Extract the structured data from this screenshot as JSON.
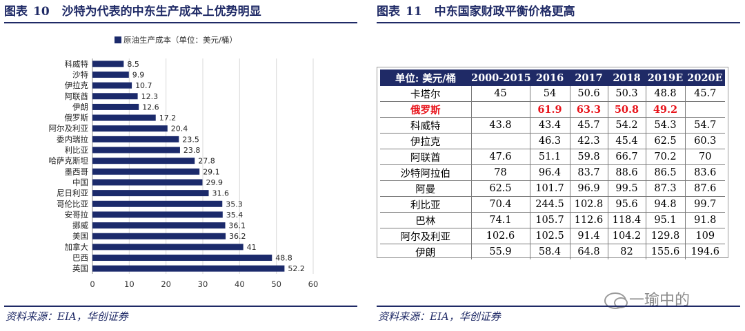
{
  "left": {
    "figure_label": "图表",
    "figure_number": "10",
    "title": "沙特为代表的中东生产成本上优势明显",
    "source": "资料来源：EIA，华创证券"
  },
  "right": {
    "figure_label": "图表",
    "figure_number": "11",
    "title": "中东国家财政平衡价格更高",
    "source": "资料来源：EIA，华创证券",
    "watermark": "一瑜中的",
    "table": {
      "headers": [
        "单位: 美元/桶",
        "2000-2015",
        "2016",
        "2017",
        "2018",
        "2019E",
        "2020E"
      ],
      "rows": [
        {
          "country": "卡塔尔",
          "values": [
            "45",
            "54",
            "50.6",
            "50.3",
            "48.8",
            "45.7"
          ],
          "highlight": false
        },
        {
          "country": "俄罗斯",
          "values": [
            "",
            "61.9",
            "63.3",
            "50.8",
            "49.2",
            ""
          ],
          "highlight": true
        },
        {
          "country": "科威特",
          "values": [
            "43.8",
            "43.4",
            "45.7",
            "54.2",
            "54.3",
            "54.7"
          ],
          "highlight": false
        },
        {
          "country": "伊拉克",
          "values": [
            "",
            "46.3",
            "42.3",
            "45.4",
            "62.5",
            "60.3"
          ],
          "highlight": false
        },
        {
          "country": "阿联酋",
          "values": [
            "47.6",
            "51.1",
            "59.8",
            "66.7",
            "70.2",
            "70"
          ],
          "highlight": false
        },
        {
          "country": "沙特阿拉伯",
          "values": [
            "78",
            "96.4",
            "83.7",
            "88.6",
            "86.5",
            "83.6"
          ],
          "highlight": false
        },
        {
          "country": "阿曼",
          "values": [
            "62.5",
            "101.7",
            "96.9",
            "99.5",
            "87.3",
            "87.6"
          ],
          "highlight": false
        },
        {
          "country": "利比亚",
          "values": [
            "70.4",
            "244.5",
            "102.8",
            "95.6",
            "94.8",
            "99.7"
          ],
          "highlight": false
        },
        {
          "country": "巴林",
          "values": [
            "74.1",
            "105.7",
            "112.6",
            "118.4",
            "95.1",
            "91.8"
          ],
          "highlight": false
        },
        {
          "country": "阿尔及利亚",
          "values": [
            "102.6",
            "102.5",
            "91.4",
            "104.2",
            "129.8",
            "109"
          ],
          "highlight": false
        },
        {
          "country": "伊朗",
          "values": [
            "55.9",
            "58.4",
            "64.8",
            "82",
            "155.6",
            "194.6"
          ],
          "highlight": false
        }
      ]
    }
  },
  "colors": {
    "brand_navy": "#1f2a66",
    "highlight_red": "#e8141b",
    "bar": "#1b2a6b"
  },
  "chart_data": {
    "type": "bar",
    "orientation": "horizontal",
    "legend": "原油生产成本（单位：美元/桶）",
    "legend_position": "top",
    "categories": [
      "科威特",
      "沙特",
      "伊拉克",
      "阿联酋",
      "伊朗",
      "俄罗斯",
      "阿尔及利亚",
      "委内瑞拉",
      "利比亚",
      "哈萨克斯坦",
      "墨西哥",
      "中国",
      "尼日利亚",
      "哥伦比亚",
      "安哥拉",
      "挪威",
      "美国",
      "加拿大",
      "巴西",
      "英国"
    ],
    "values": [
      8.5,
      9.9,
      10.7,
      12.3,
      12.6,
      17.2,
      20.4,
      23.5,
      23.8,
      27.8,
      29.1,
      29.9,
      31.6,
      35.3,
      35.4,
      36.1,
      36.2,
      41,
      48.8,
      52.2
    ],
    "value_labels": [
      "8.5",
      "9.9",
      "10.7",
      "12.3",
      "12.6",
      "17.2",
      "20.4",
      "23.5",
      "23.8",
      "27.8",
      "29.1",
      "29.9",
      "31.6",
      "35.3",
      "35.4",
      "36.1",
      "36.2",
      "41",
      "48.8",
      "52.2"
    ],
    "xlim": [
      0,
      60
    ],
    "xticks": [
      0,
      10,
      20,
      30,
      40,
      50,
      60
    ],
    "grid": "vertical"
  }
}
